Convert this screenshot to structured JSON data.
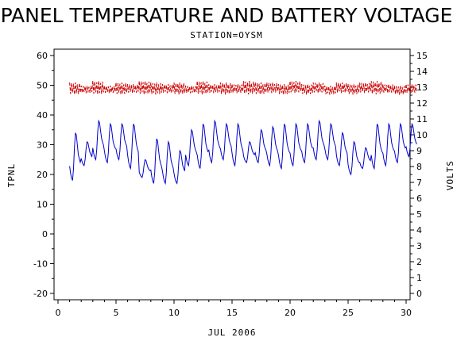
{
  "chart_data": {
    "type": "line",
    "title": "PANEL TEMPERATURE AND BATTERY VOLTAGE",
    "subtitle": "STATION=OYSM",
    "xlabel": "JUL 2006",
    "ylabel": "TPNL",
    "y2label": "VOLTS",
    "xlim": [
      0,
      30
    ],
    "ylim": [
      -20,
      60
    ],
    "y2lim": [
      0,
      15
    ],
    "x_ticks": [
      "0",
      "5",
      "10",
      "15",
      "20",
      "25",
      "30"
    ],
    "y_ticks": [
      "-20",
      "-10",
      "0",
      "10",
      "20",
      "30",
      "40",
      "50",
      "60"
    ],
    "y2_ticks": [
      "0",
      "1",
      "2",
      "3",
      "4",
      "5",
      "6",
      "7",
      "8",
      "9",
      "10",
      "11",
      "12",
      "13",
      "14",
      "15"
    ],
    "series": [
      {
        "axis": "left",
        "color": "#0000cc",
        "style": "solid",
        "daily_min": [
          18,
          23,
          25,
          24,
          25,
          22,
          19,
          17,
          17,
          17,
          23,
          22,
          24,
          25,
          23,
          24,
          24,
          23,
          22,
          23,
          24,
          25,
          25,
          23,
          20,
          22,
          22,
          23,
          24,
          26
        ],
        "daily_max": [
          34,
          31,
          38,
          37,
          37,
          37,
          25,
          32,
          31,
          28,
          35,
          37,
          38,
          37,
          37,
          31,
          35,
          36,
          37,
          37,
          37,
          38,
          37,
          34,
          31,
          29,
          37,
          37,
          37,
          37
        ]
      },
      {
        "axis": "right",
        "color": "#cc0000",
        "style": "dashed",
        "daily_min": [
          12.5,
          12.6,
          12.5,
          12.6,
          12.5,
          12.6,
          12.5,
          12.5,
          12.6,
          12.5,
          12.6,
          12.5,
          12.6,
          12.5,
          12.6,
          12.5,
          12.5,
          12.6,
          12.5,
          12.6,
          12.5,
          12.6,
          12.5,
          12.6,
          12.5,
          12.6,
          12.5,
          12.6,
          12.5,
          12.6
        ],
        "daily_max": [
          13.3,
          13.1,
          13.4,
          13.1,
          13.3,
          13.2,
          13.4,
          13.3,
          13.2,
          13.3,
          13.1,
          13.4,
          13.2,
          13.3,
          13.2,
          13.4,
          13.3,
          13.3,
          13.2,
          13.4,
          13.2,
          13.3,
          13.1,
          13.3,
          13.2,
          13.3,
          13.4,
          13.2,
          13.1,
          13.2
        ]
      }
    ]
  }
}
